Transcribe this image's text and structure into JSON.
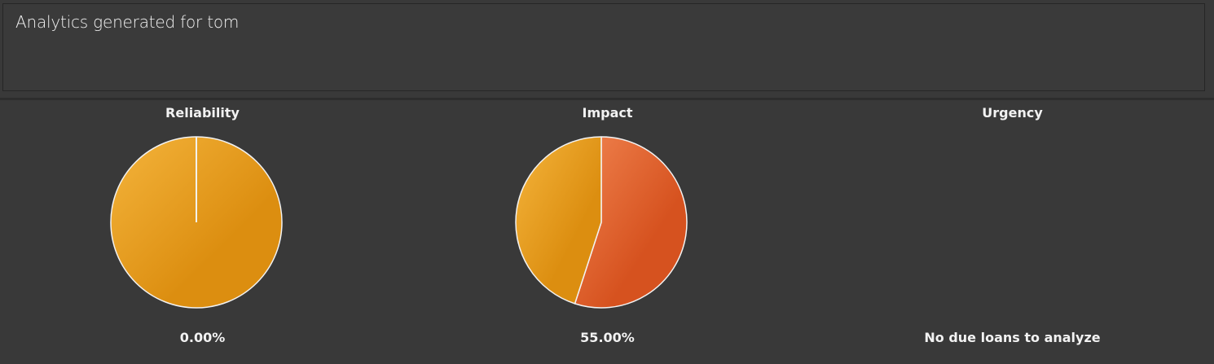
{
  "header": {
    "text": "Analytics generated for tom"
  },
  "colors": {
    "background": "#393939",
    "primary_slice": "#e0592a",
    "secondary_slice": "#eda020",
    "slice_border": "#f2f2f2",
    "text": "#f2f2f2"
  },
  "chart_data": [
    {
      "type": "pie",
      "title": "Reliability",
      "value_label": "0.00%",
      "slices": [
        {
          "name": "",
          "value": 0
        },
        {
          "name": "",
          "value": 100
        }
      ]
    },
    {
      "type": "pie",
      "title": "Impact",
      "value_label": "55.00%",
      "slices": [
        {
          "name": "",
          "value": 55
        },
        {
          "name": "",
          "value": 45
        }
      ]
    },
    {
      "type": "pie",
      "title": "Urgency",
      "value_label": "No due loans to analyze",
      "slices": []
    }
  ]
}
